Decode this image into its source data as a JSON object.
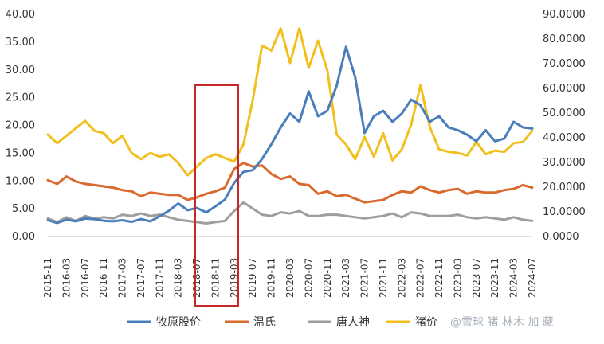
{
  "chart_data": {
    "type": "line",
    "x": [
      "2015-11",
      "2016-01",
      "2016-03",
      "2016-05",
      "2016-07",
      "2016-09",
      "2016-11",
      "2017-01",
      "2017-03",
      "2017-05",
      "2017-07",
      "2017-09",
      "2017-11",
      "2018-01",
      "2018-03",
      "2018-05",
      "2018-07",
      "2018-09",
      "2018-11",
      "2019-01",
      "2019-03",
      "2019-05",
      "2019-07",
      "2019-09",
      "2019-11",
      "2020-01",
      "2020-03",
      "2020-05",
      "2020-07",
      "2020-09",
      "2020-11",
      "2021-01",
      "2021-03",
      "2021-05",
      "2021-07",
      "2021-09",
      "2021-11",
      "2022-01",
      "2022-03",
      "2022-05",
      "2022-07",
      "2022-09",
      "2022-11",
      "2023-01",
      "2023-03",
      "2023-05",
      "2023-07",
      "2023-09",
      "2023-11",
      "2024-01",
      "2024-03",
      "2024-05",
      "2024-07"
    ],
    "x_tick_labels": [
      "2015-11",
      "2016-03",
      "2016-07",
      "2016-11",
      "2017-03",
      "2017-07",
      "2017-11",
      "2018-03",
      "2018-07",
      "2018-11",
      "2019-03",
      "2019-07",
      "2019-11",
      "2020-03",
      "2020-07",
      "2020-11",
      "2021-03",
      "2021-07",
      "2021-11",
      "2022-03",
      "2022-07",
      "2022-11",
      "2023-03",
      "2023-07",
      "2023-11",
      "2024-03",
      "2024-07"
    ],
    "y_left": {
      "ylim": [
        0,
        40
      ],
      "ticks": [
        "0.00",
        "5.00",
        "10.00",
        "15.00",
        "20.00",
        "25.00",
        "30.00",
        "35.00",
        "40.00"
      ]
    },
    "y_right": {
      "ylim": [
        0,
        90
      ],
      "ticks": [
        "0.0000",
        "10.0000",
        "20.0000",
        "30.0000",
        "40.0000",
        "50.0000",
        "60.0000",
        "70.0000",
        "80.0000",
        "90.0000"
      ]
    },
    "grid": false,
    "legend_position": "bottom",
    "series": [
      {
        "name": "牧原股价",
        "axis": "left",
        "color": "#4a7ebb",
        "values": [
          2.8,
          2.3,
          2.9,
          2.6,
          3.1,
          3.0,
          2.7,
          2.6,
          2.8,
          2.5,
          3.0,
          2.6,
          3.5,
          4.5,
          5.8,
          4.6,
          5.0,
          4.2,
          5.3,
          6.5,
          9.5,
          11.5,
          11.8,
          13.8,
          16.5,
          19.5,
          22.0,
          20.5,
          26.0,
          21.5,
          22.5,
          27.0,
          34.0,
          28.5,
          18.5,
          21.5,
          22.5,
          20.5,
          22.0,
          24.5,
          23.5,
          20.5,
          21.5,
          19.5,
          19.0,
          18.2,
          17.0,
          19.0,
          17.0,
          17.5,
          20.5,
          19.5,
          19.3
        ]
      },
      {
        "name": "温氏",
        "axis": "right",
        "color": "#d9692c",
        "values": [
          22.5,
          21.0,
          24.0,
          22.0,
          21.0,
          20.5,
          20.0,
          19.5,
          18.5,
          18.0,
          16.0,
          17.5,
          17.0,
          16.5,
          16.5,
          14.5,
          15.5,
          17.0,
          18.0,
          19.5,
          27.0,
          29.5,
          28.0,
          28.5,
          25.0,
          23.0,
          24.0,
          21.0,
          20.5,
          17.0,
          18.0,
          16.0,
          16.5,
          15.0,
          13.5,
          14.0,
          14.5,
          16.5,
          18.0,
          17.5,
          20.0,
          18.5,
          17.5,
          18.5,
          19.0,
          17.0,
          18.0,
          17.5,
          17.5,
          18.5,
          19.0,
          20.5,
          19.5
        ]
      },
      {
        "name": "唐人神",
        "axis": "right",
        "color": "#9e9e9e",
        "values": [
          7.0,
          5.5,
          7.5,
          6.0,
          8.0,
          7.0,
          7.5,
          7.0,
          8.5,
          8.0,
          9.0,
          8.0,
          8.5,
          7.5,
          6.5,
          6.0,
          5.5,
          5.0,
          5.5,
          6.0,
          10.0,
          13.5,
          11.0,
          8.5,
          8.0,
          9.5,
          9.0,
          10.0,
          8.0,
          8.0,
          8.5,
          8.5,
          8.0,
          7.5,
          7.0,
          7.5,
          8.0,
          9.0,
          7.5,
          9.5,
          9.0,
          8.0,
          8.0,
          8.0,
          8.5,
          7.5,
          7.0,
          7.5,
          7.0,
          6.5,
          7.5,
          6.5,
          6.0
        ]
      },
      {
        "name": "猪价",
        "axis": "right",
        "color": "#f2c01e",
        "values": [
          41.0,
          37.5,
          40.5,
          43.5,
          46.5,
          42.5,
          41.5,
          37.5,
          40.5,
          33.5,
          31.0,
          33.5,
          32.0,
          33.0,
          29.5,
          24.5,
          28.0,
          31.5,
          33.0,
          31.5,
          30.0,
          37.0,
          55.0,
          77.0,
          75.0,
          84.0,
          70.0,
          84.0,
          68.0,
          79.0,
          67.0,
          41.0,
          37.0,
          31.0,
          40.0,
          32.0,
          41.5,
          30.5,
          35.0,
          45.0,
          61.0,
          44.0,
          35.0,
          34.0,
          33.5,
          32.5,
          38.0,
          33.0,
          34.5,
          34.0,
          37.5,
          38.0,
          42.5
        ]
      }
    ]
  },
  "watermark_text": "@雪球 猪 林木 加 藏"
}
